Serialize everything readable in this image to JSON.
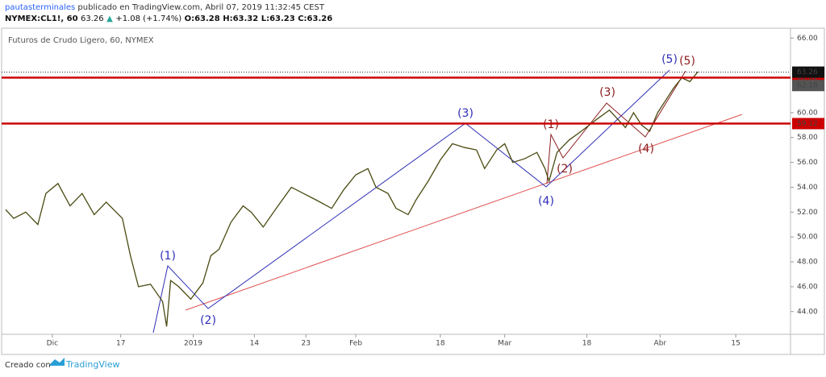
{
  "header": {
    "author": "pautasterminales",
    "published": "publicado en TradingView.com, Abril 07, 2019 11:32:45 CEST",
    "symbol": "NYMEX:CL1!, 60",
    "last": "63.26",
    "arrow": "▲",
    "change": "+1.08 (+1.74%)",
    "open": "O:63.28",
    "high": "H:63.32",
    "low": "L:63.23",
    "close": "C:63.26"
  },
  "chart_data": {
    "type": "line",
    "title": "Futuros de Crudo Ligero, 60, NYMEX",
    "color": "#4a4a12",
    "x": [
      5,
      15,
      30,
      45,
      55,
      70,
      85,
      100,
      115,
      130,
      150,
      160,
      170,
      185,
      200,
      205,
      210,
      220,
      235,
      250,
      260,
      270,
      285,
      300,
      310,
      325,
      340,
      360,
      375,
      390,
      410,
      425,
      440,
      455,
      465,
      480,
      490,
      505,
      515,
      530,
      545,
      560,
      575,
      590,
      600,
      615,
      625,
      635,
      650,
      665,
      675,
      680,
      690,
      705,
      720,
      740,
      755,
      765,
      775,
      785,
      795,
      805,
      815,
      825,
      835,
      845,
      855,
      865
    ],
    "values": [
      52.2,
      51.5,
      52.0,
      51.0,
      53.5,
      54.3,
      52.5,
      53.5,
      51.8,
      52.8,
      51.5,
      48.5,
      46.0,
      46.2,
      44.8,
      42.8,
      46.5,
      46.0,
      45.0,
      46.3,
      48.5,
      49.0,
      51.2,
      52.5,
      52.0,
      50.8,
      52.2,
      54.0,
      53.5,
      53.0,
      52.3,
      53.8,
      55.0,
      55.5,
      54.0,
      53.5,
      52.3,
      51.8,
      53.0,
      54.5,
      56.2,
      57.5,
      57.2,
      57.0,
      55.5,
      57.0,
      57.5,
      56.0,
      56.3,
      56.8,
      55.5,
      54.5,
      56.8,
      57.8,
      58.5,
      59.5,
      60.2,
      59.5,
      58.8,
      60.0,
      59.0,
      58.5,
      60.0,
      61.0,
      62.0,
      62.8,
      62.5,
      63.3
    ],
    "xlim": [
      0,
      980
    ],
    "ylim": [
      42.3,
      66.6
    ],
    "xticks": [
      {
        "value": 63,
        "label": "Dic"
      },
      {
        "value": 148,
        "label": "17"
      },
      {
        "value": 238,
        "label": "2019"
      },
      {
        "value": 314,
        "label": "14"
      },
      {
        "value": 378,
        "label": "23"
      },
      {
        "value": 440,
        "label": "Feb"
      },
      {
        "value": 545,
        "label": "18"
      },
      {
        "value": 625,
        "label": "Mar"
      },
      {
        "value": 727,
        "label": "18"
      },
      {
        "value": 818,
        "label": "Abr"
      },
      {
        "value": 912,
        "label": "15"
      }
    ],
    "yticks": [
      {
        "value": 44,
        "label": "44.00"
      },
      {
        "value": 46,
        "label": "46.00"
      },
      {
        "value": 48,
        "label": "48.00"
      },
      {
        "value": 50,
        "label": "50.00"
      },
      {
        "value": 52,
        "label": "52.00"
      },
      {
        "value": 54,
        "label": "54.00"
      },
      {
        "value": 56,
        "label": "56.00"
      },
      {
        "value": 58,
        "label": "58.00"
      },
      {
        "value": 60,
        "label": "60.00"
      },
      {
        "value": 66,
        "label": "66.00"
      }
    ],
    "levels": [
      {
        "value": 62.82,
        "color": "#cc0000"
      },
      {
        "value": 59.12,
        "color": "#cc0000"
      }
    ],
    "last_price": {
      "value": 63.26,
      "color": "#111111"
    },
    "marker_price": {
      "value": 62.18,
      "color": "#555555"
    },
    "waves": [
      {
        "color": "#2f2fb8",
        "labels": [
          "(1)",
          "(2)",
          "(3)",
          "(4)",
          "(5)"
        ]
      },
      {
        "color": "#8b1c1c",
        "labels": [
          "(1)",
          "(2)",
          "(3)",
          "(4)",
          "(5)"
        ]
      }
    ],
    "trendline_color": "#e05050"
  },
  "footer": {
    "made_with": "Creado con",
    "brand": "TradingView"
  }
}
